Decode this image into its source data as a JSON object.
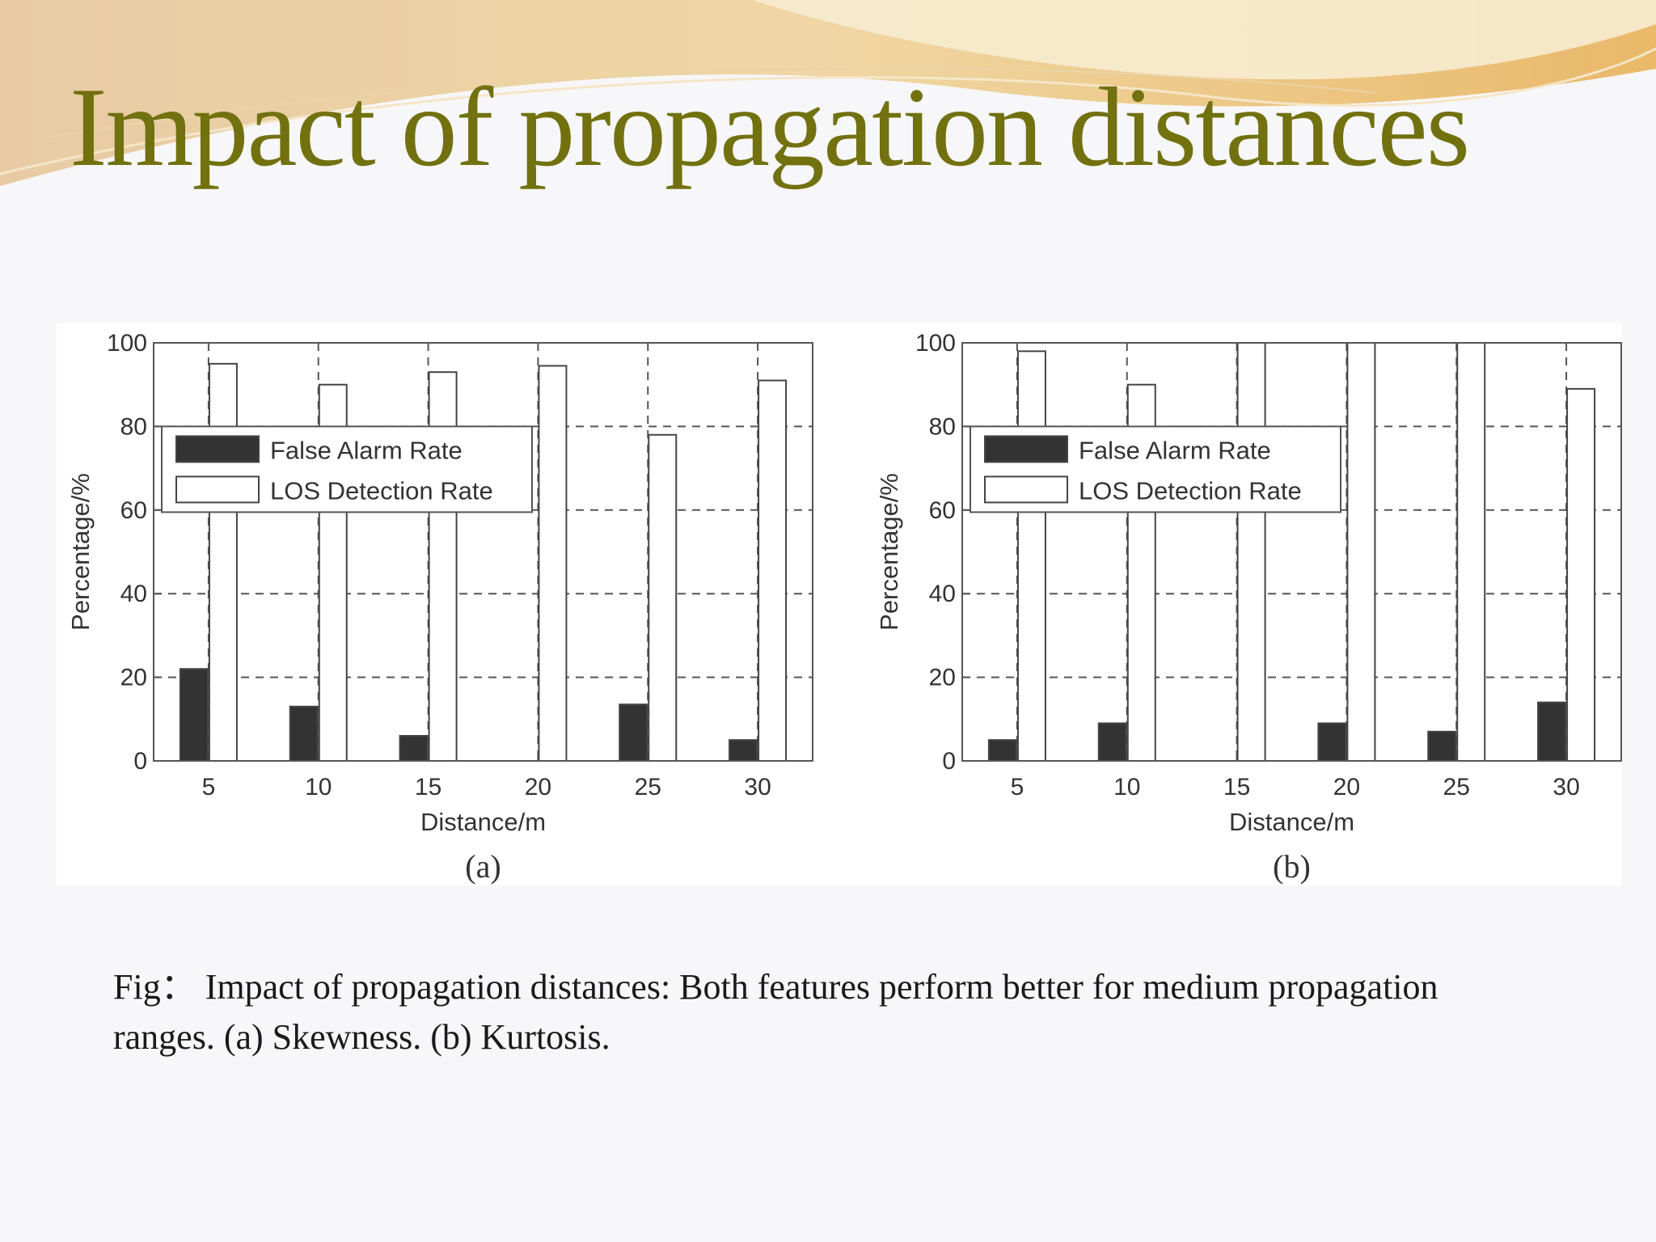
{
  "slide": {
    "title": "Impact of propagation distances",
    "caption": "Fig： Impact of propagation distances: Both features perform better for medium propagation ranges. (a) Skewness. (b) Kurtosis."
  },
  "colors": {
    "title": "#717110",
    "false_alarm_bar": "#333333",
    "detection_bar": "#ffffff",
    "axis": "#555555",
    "grid": "#555555"
  },
  "chart_data": [
    {
      "type": "bar",
      "panel_label": "(a)",
      "xlabel": "Distance/m",
      "ylabel": "Percentage/%",
      "categories": [
        "5",
        "10",
        "15",
        "20",
        "25",
        "30"
      ],
      "ylim": [
        0,
        100
      ],
      "yticks": [
        0,
        20,
        40,
        60,
        80,
        100
      ],
      "grid": true,
      "legend_position": "upper-left",
      "series": [
        {
          "name": "False Alarm Rate",
          "values": [
            22,
            13,
            6,
            0,
            13.5,
            5
          ]
        },
        {
          "name": "LOS Detection Rate",
          "values": [
            95,
            90,
            93,
            94.5,
            78,
            91
          ]
        }
      ]
    },
    {
      "type": "bar",
      "panel_label": "(b)",
      "xlabel": "Distance/m",
      "ylabel": "Percentage/%",
      "categories": [
        "5",
        "10",
        "15",
        "20",
        "25",
        "30"
      ],
      "ylim": [
        0,
        100
      ],
      "yticks": [
        0,
        20,
        40,
        60,
        80,
        100
      ],
      "grid": true,
      "legend_position": "upper-left",
      "series": [
        {
          "name": "False Alarm Rate",
          "values": [
            5,
            9,
            0,
            9,
            7,
            14
          ]
        },
        {
          "name": "LOS Detection Rate",
          "values": [
            98,
            90,
            100,
            100,
            100,
            89
          ]
        }
      ]
    }
  ]
}
